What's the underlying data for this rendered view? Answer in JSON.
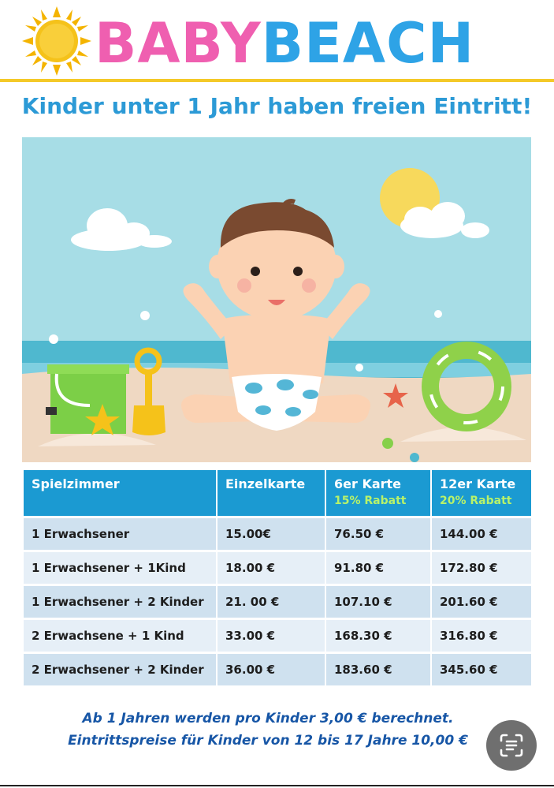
{
  "brand": {
    "part1": "BABY",
    "part2": "BEACH"
  },
  "tagline": "Kinder unter 1 Jahr haben freien Eintritt!",
  "table": {
    "headers": [
      {
        "label": "Spielzimmer",
        "sub": ""
      },
      {
        "label": "Einzelkarte",
        "sub": ""
      },
      {
        "label": "6er Karte",
        "sub": "15% Rabatt"
      },
      {
        "label": "12er Karte",
        "sub": "20% Rabatt"
      }
    ],
    "rows": [
      {
        "name": "1 Erwachsener",
        "single": "15.00€",
        "six": "76.50 €",
        "twelve": "144.00 €"
      },
      {
        "name": "1 Erwachsener + 1Kind",
        "single": "18.00 €",
        "six": "91.80 €",
        "twelve": "172.80 €"
      },
      {
        "name": "1 Erwachsener + 2 Kinder",
        "single": "21. 00 €",
        "six": "107.10 €",
        "twelve": "201.60 €"
      },
      {
        "name": "2 Erwachsene + 1 Kind",
        "single": "33.00 €",
        "six": "168.30 €",
        "twelve": "316.80 €"
      },
      {
        "name": "2 Erwachsener + 2 Kinder",
        "single": "36.00 €",
        "six": "183.60 €",
        "twelve": "345.60 €"
      }
    ]
  },
  "notes": {
    "line1": "Ab 1 Jahren werden pro Kinder 3,00 € berechnet.",
    "line2": "Eintrittspreise für Kinder von 12 bis 17 Jahre 10,00 €"
  },
  "colors": {
    "pink": "#ef5fb0",
    "blue": "#2ea3e6",
    "yellow": "#f4c928",
    "table_header": "#1b9ad2",
    "rabatt": "#b7f26a",
    "note_text": "#1756a6"
  },
  "icons": {
    "logo": "sun-icon",
    "scan": "scan-text-icon"
  }
}
